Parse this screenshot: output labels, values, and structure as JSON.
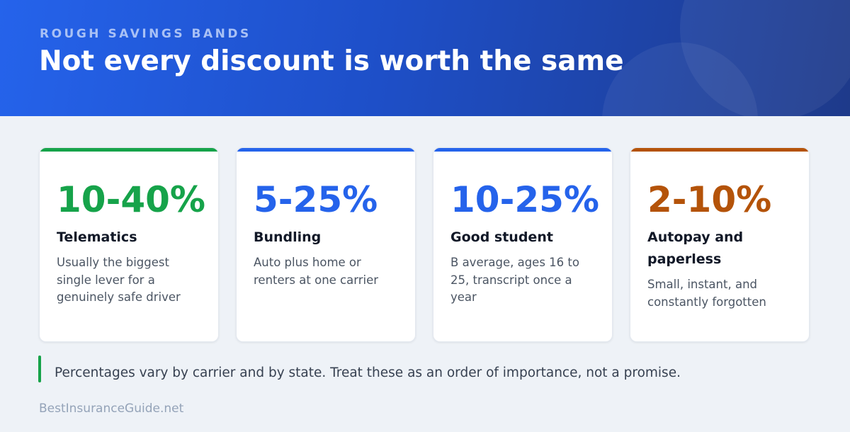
{
  "header": {
    "eyebrow": "ROUGH SAVINGS BANDS",
    "title": "Not every discount is worth the same"
  },
  "cards": [
    {
      "value": "10-40%",
      "label": "Telematics",
      "description": "Usually the biggest single lever for a genuinely safe driver",
      "color": "#16a34a"
    },
    {
      "value": "5-25%",
      "label": "Bundling",
      "description": "Auto plus home or renters at one carrier",
      "color": "#2563eb"
    },
    {
      "value": "10-25%",
      "label": "Good student",
      "description": "B average, ages 16 to 25, transcript once a year",
      "color": "#2563eb"
    },
    {
      "value": "2-10%",
      "label": "Autopay and paperless",
      "description": "Small, instant, and constantly forgotten",
      "color": "#b45309"
    }
  ],
  "note": {
    "text": "Percentages vary by carrier and by state. Treat these as an order of importance, not a promise.",
    "color": "#16a34a"
  },
  "footer": {
    "text": "BestInsuranceGuide.net"
  }
}
